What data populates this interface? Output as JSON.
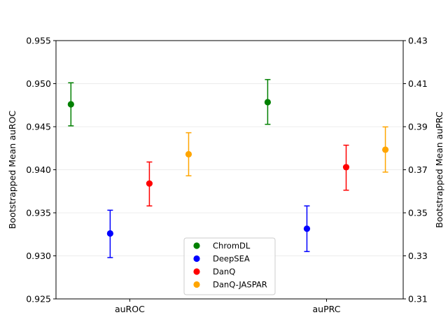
{
  "chart_data": {
    "type": "scatter",
    "categories": [
      "auROC",
      "auPRC"
    ],
    "ylabel_left": "Bootstrapped Mean auROC",
    "ylabel_right": "Bootstrapped Mean auPRC",
    "ylim_left": [
      0.925,
      0.955
    ],
    "ylim_right": [
      0.31,
      0.43
    ],
    "yticks_left": [
      "0.925",
      "0.930",
      "0.935",
      "0.940",
      "0.945",
      "0.950",
      "0.955"
    ],
    "yticks_right": [
      "0.31",
      "0.33",
      "0.35",
      "0.37",
      "0.39",
      "0.41",
      "0.43"
    ],
    "grid": "horizontal",
    "legend_position": "lower center",
    "series": [
      {
        "name": "ChromDL",
        "color": "#008000",
        "auROC": {
          "mean": 0.9476,
          "lower": 0.9451,
          "upper": 0.9501
        },
        "auPRC": {
          "mean": 0.4014,
          "lower": 0.3911,
          "upper": 0.4119
        }
      },
      {
        "name": "DeepSEA",
        "color": "#0000ff",
        "auROC": {
          "mean": 0.9326,
          "lower": 0.9298,
          "upper": 0.9353
        },
        "auPRC": {
          "mean": 0.3426,
          "lower": 0.332,
          "upper": 0.3532
        }
      },
      {
        "name": "DanQ",
        "color": "#ff0000",
        "auROC": {
          "mean": 0.9384,
          "lower": 0.9358,
          "upper": 0.9409
        },
        "auPRC": {
          "mean": 0.3712,
          "lower": 0.3605,
          "upper": 0.3814
        }
      },
      {
        "name": "DanQ-JASPAR",
        "color": "#ffa500",
        "auROC": {
          "mean": 0.9418,
          "lower": 0.9393,
          "upper": 0.9443
        },
        "auPRC": {
          "mean": 0.3793,
          "lower": 0.3689,
          "upper": 0.3899
        }
      }
    ]
  }
}
